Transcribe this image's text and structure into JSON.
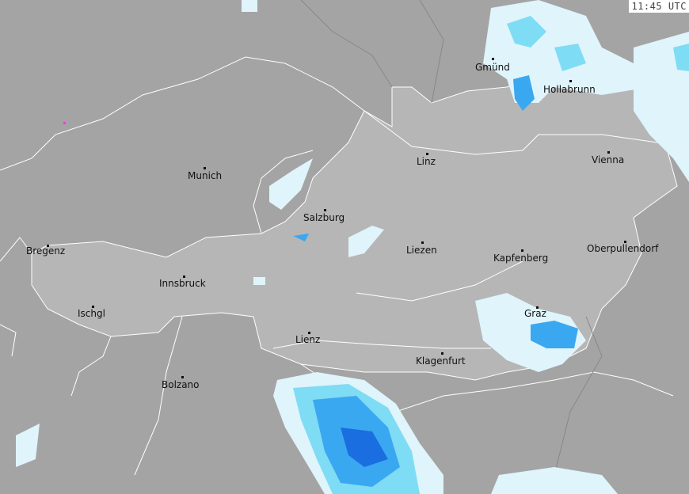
{
  "timestamp": "11:45 UTC",
  "colors": {
    "background": "#a4a4a4",
    "country_highlight": "#b6b6b6",
    "borders": "#ffffff",
    "radar_light": "#dff4fb",
    "radar_cyan": "#7fdcf5",
    "radar_mid": "#3aa8f0",
    "radar_strong": "#1a6ee0"
  },
  "cities": [
    {
      "name": "Gmünd"
    },
    {
      "name": "Hollabrunn"
    },
    {
      "name": "Linz"
    },
    {
      "name": "Vienna"
    },
    {
      "name": "Munich"
    },
    {
      "name": "Salzburg"
    },
    {
      "name": "Bregenz"
    },
    {
      "name": "Liezen"
    },
    {
      "name": "Kapfenberg"
    },
    {
      "name": "Oberpullendorf"
    },
    {
      "name": "Innsbruck"
    },
    {
      "name": "Ischgl"
    },
    {
      "name": "Graz"
    },
    {
      "name": "Lienz"
    },
    {
      "name": "Klagenfurt"
    },
    {
      "name": "Bolzano"
    }
  ]
}
